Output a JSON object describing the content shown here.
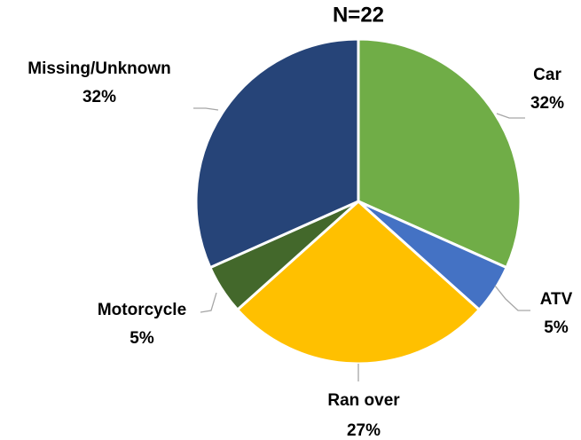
{
  "chart_data": {
    "type": "pie",
    "title": "N=22",
    "categories": [
      "Car",
      "ATV",
      "Ran over",
      "Motorcycle",
      "Missing/Unknown"
    ],
    "values": [
      32,
      5,
      27,
      5,
      32
    ],
    "value_labels": [
      "32%",
      "5%",
      "27%",
      "5%",
      "32%"
    ],
    "colors": [
      "#70ad47",
      "#4472c4",
      "#ffc000",
      "#43682b",
      "#264478"
    ]
  }
}
